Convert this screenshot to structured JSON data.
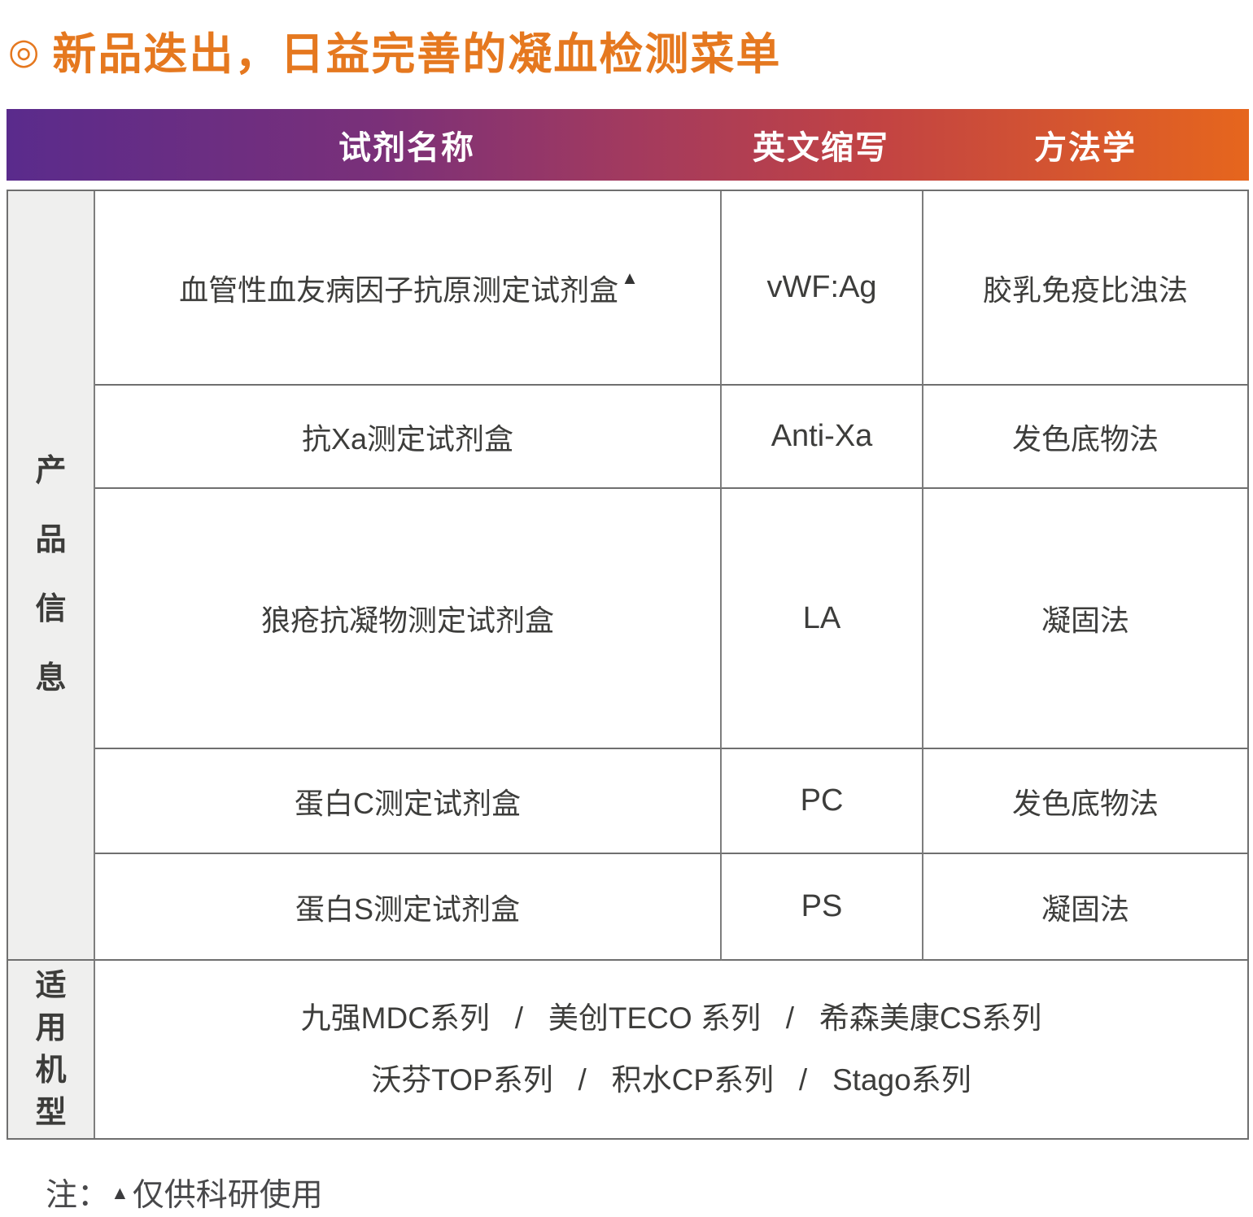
{
  "title": {
    "bullet": "◎",
    "text": "新品迭出，日益完善的凝血检测菜单"
  },
  "table": {
    "headers": {
      "reagent": "试剂名称",
      "abbr": "英文缩写",
      "method": "方法学"
    },
    "side_labels": {
      "products": "产品信息",
      "instruments": "适用机型"
    },
    "rows": [
      {
        "name": "血管性血友病因子抗原测定试剂盒",
        "marker": "▲",
        "abbr": "vWF:Ag",
        "method": "胶乳免疫比浊法"
      },
      {
        "name": "抗Xa测定试剂盒",
        "marker": "",
        "abbr": "Anti-Xa",
        "method": "发色底物法"
      },
      {
        "name": "狼疮抗凝物测定试剂盒",
        "marker": "",
        "abbr": "LA",
        "method": "凝固法"
      },
      {
        "name": "蛋白C测定试剂盒",
        "marker": "",
        "abbr": "PC",
        "method": "发色底物法"
      },
      {
        "name": "蛋白S测定试剂盒",
        "marker": "",
        "abbr": "PS",
        "method": "凝固法"
      }
    ],
    "instruments": {
      "line1": "九强MDC系列   /   美创TECO 系列   /   希森美康CS系列",
      "line2": "沃芬TOP系列   /   积水CP系列   /   Stago系列"
    }
  },
  "footnote": {
    "prefix": "注：",
    "marker": "▲",
    "text": "仅供科研使用"
  },
  "colors": {
    "accent_orange": "#E5781F",
    "gradient_start": "#5A2B8C",
    "gradient_end": "#E6661D",
    "side_label_bg": "#EFEFEE",
    "border_gray": "#6F6F6F",
    "body_text": "#3D3D3B"
  }
}
